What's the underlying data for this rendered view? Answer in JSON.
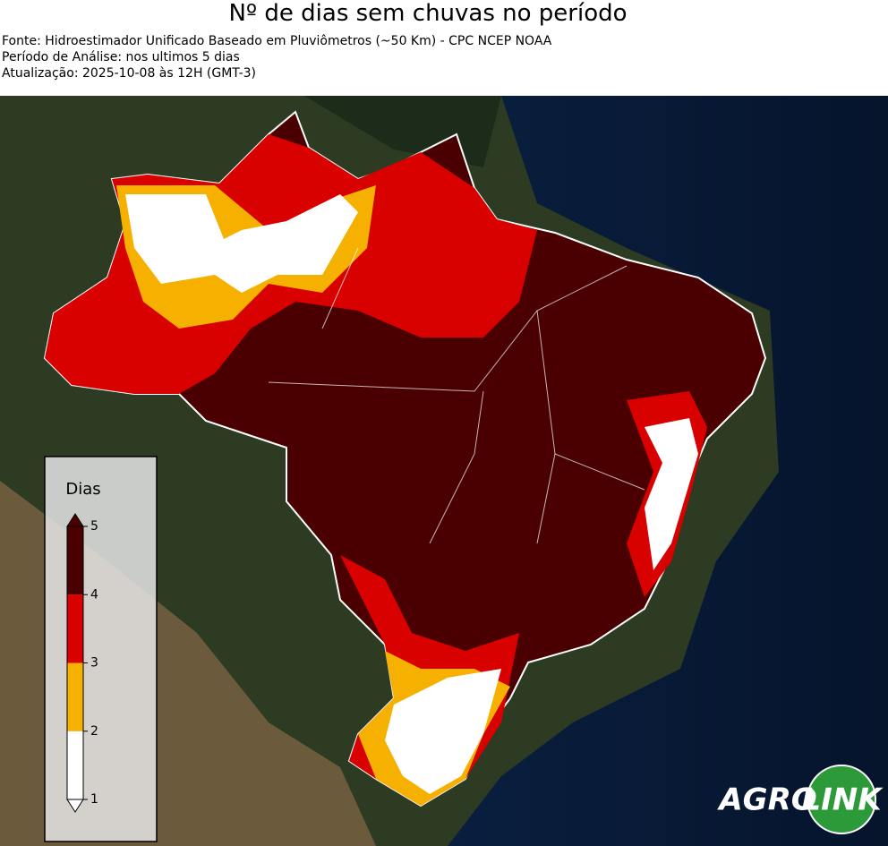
{
  "header": {
    "title": "Nº de dias sem chuvas no período",
    "lines": [
      "Fonte: Hidroestimador Unificado Baseado em Pluviômetros (~50 Km) - CPC NCEP NOAA",
      "Período de Análise: nos ultimos 5 dias",
      "Atualização: 2025-10-08 às 12H (GMT-3)"
    ]
  },
  "legend": {
    "title": "Dias",
    "ticks": [
      1,
      2,
      3,
      4,
      5
    ],
    "colors": [
      "#ffffff",
      "#f5b000",
      "#d90000",
      "#4a0000"
    ]
  },
  "logo": {
    "left": "AGRO",
    "right": "LINK"
  }
}
